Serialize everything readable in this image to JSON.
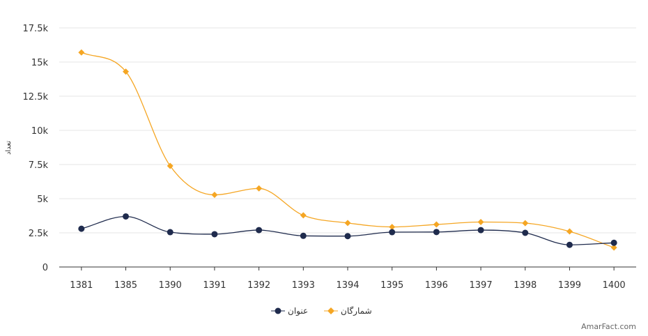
{
  "chart_data": {
    "type": "line",
    "x": [
      "1381",
      "1385",
      "1390",
      "1391",
      "1392",
      "1393",
      "1394",
      "1395",
      "1396",
      "1397",
      "1398",
      "1399",
      "1400"
    ],
    "ylabel": "تعداد",
    "ylim": [
      0,
      17500
    ],
    "yticks": [
      {
        "value": 0,
        "label": "0"
      },
      {
        "value": 2500,
        "label": "2.5k"
      },
      {
        "value": 5000,
        "label": "5k"
      },
      {
        "value": 7500,
        "label": "7.5k"
      },
      {
        "value": 10000,
        "label": "10k"
      },
      {
        "value": 12500,
        "label": "12.5k"
      },
      {
        "value": 15000,
        "label": "15k"
      },
      {
        "value": 17500,
        "label": "17.5k"
      }
    ],
    "grid": true,
    "legend": "bottom-center",
    "series": [
      {
        "name": "عنوان",
        "color": "#1f2b4d",
        "marker": "circle",
        "values": [
          2800,
          3700,
          2550,
          2400,
          2700,
          2280,
          2260,
          2550,
          2560,
          2700,
          2500,
          1620,
          1770
        ]
      },
      {
        "name": "شمارگان",
        "color": "#f5a623",
        "marker": "diamond",
        "values": [
          15700,
          14300,
          7400,
          5280,
          5750,
          3780,
          3220,
          2930,
          3110,
          3290,
          3210,
          2600,
          1420
        ]
      }
    ]
  },
  "credit": "AmarFact.com"
}
